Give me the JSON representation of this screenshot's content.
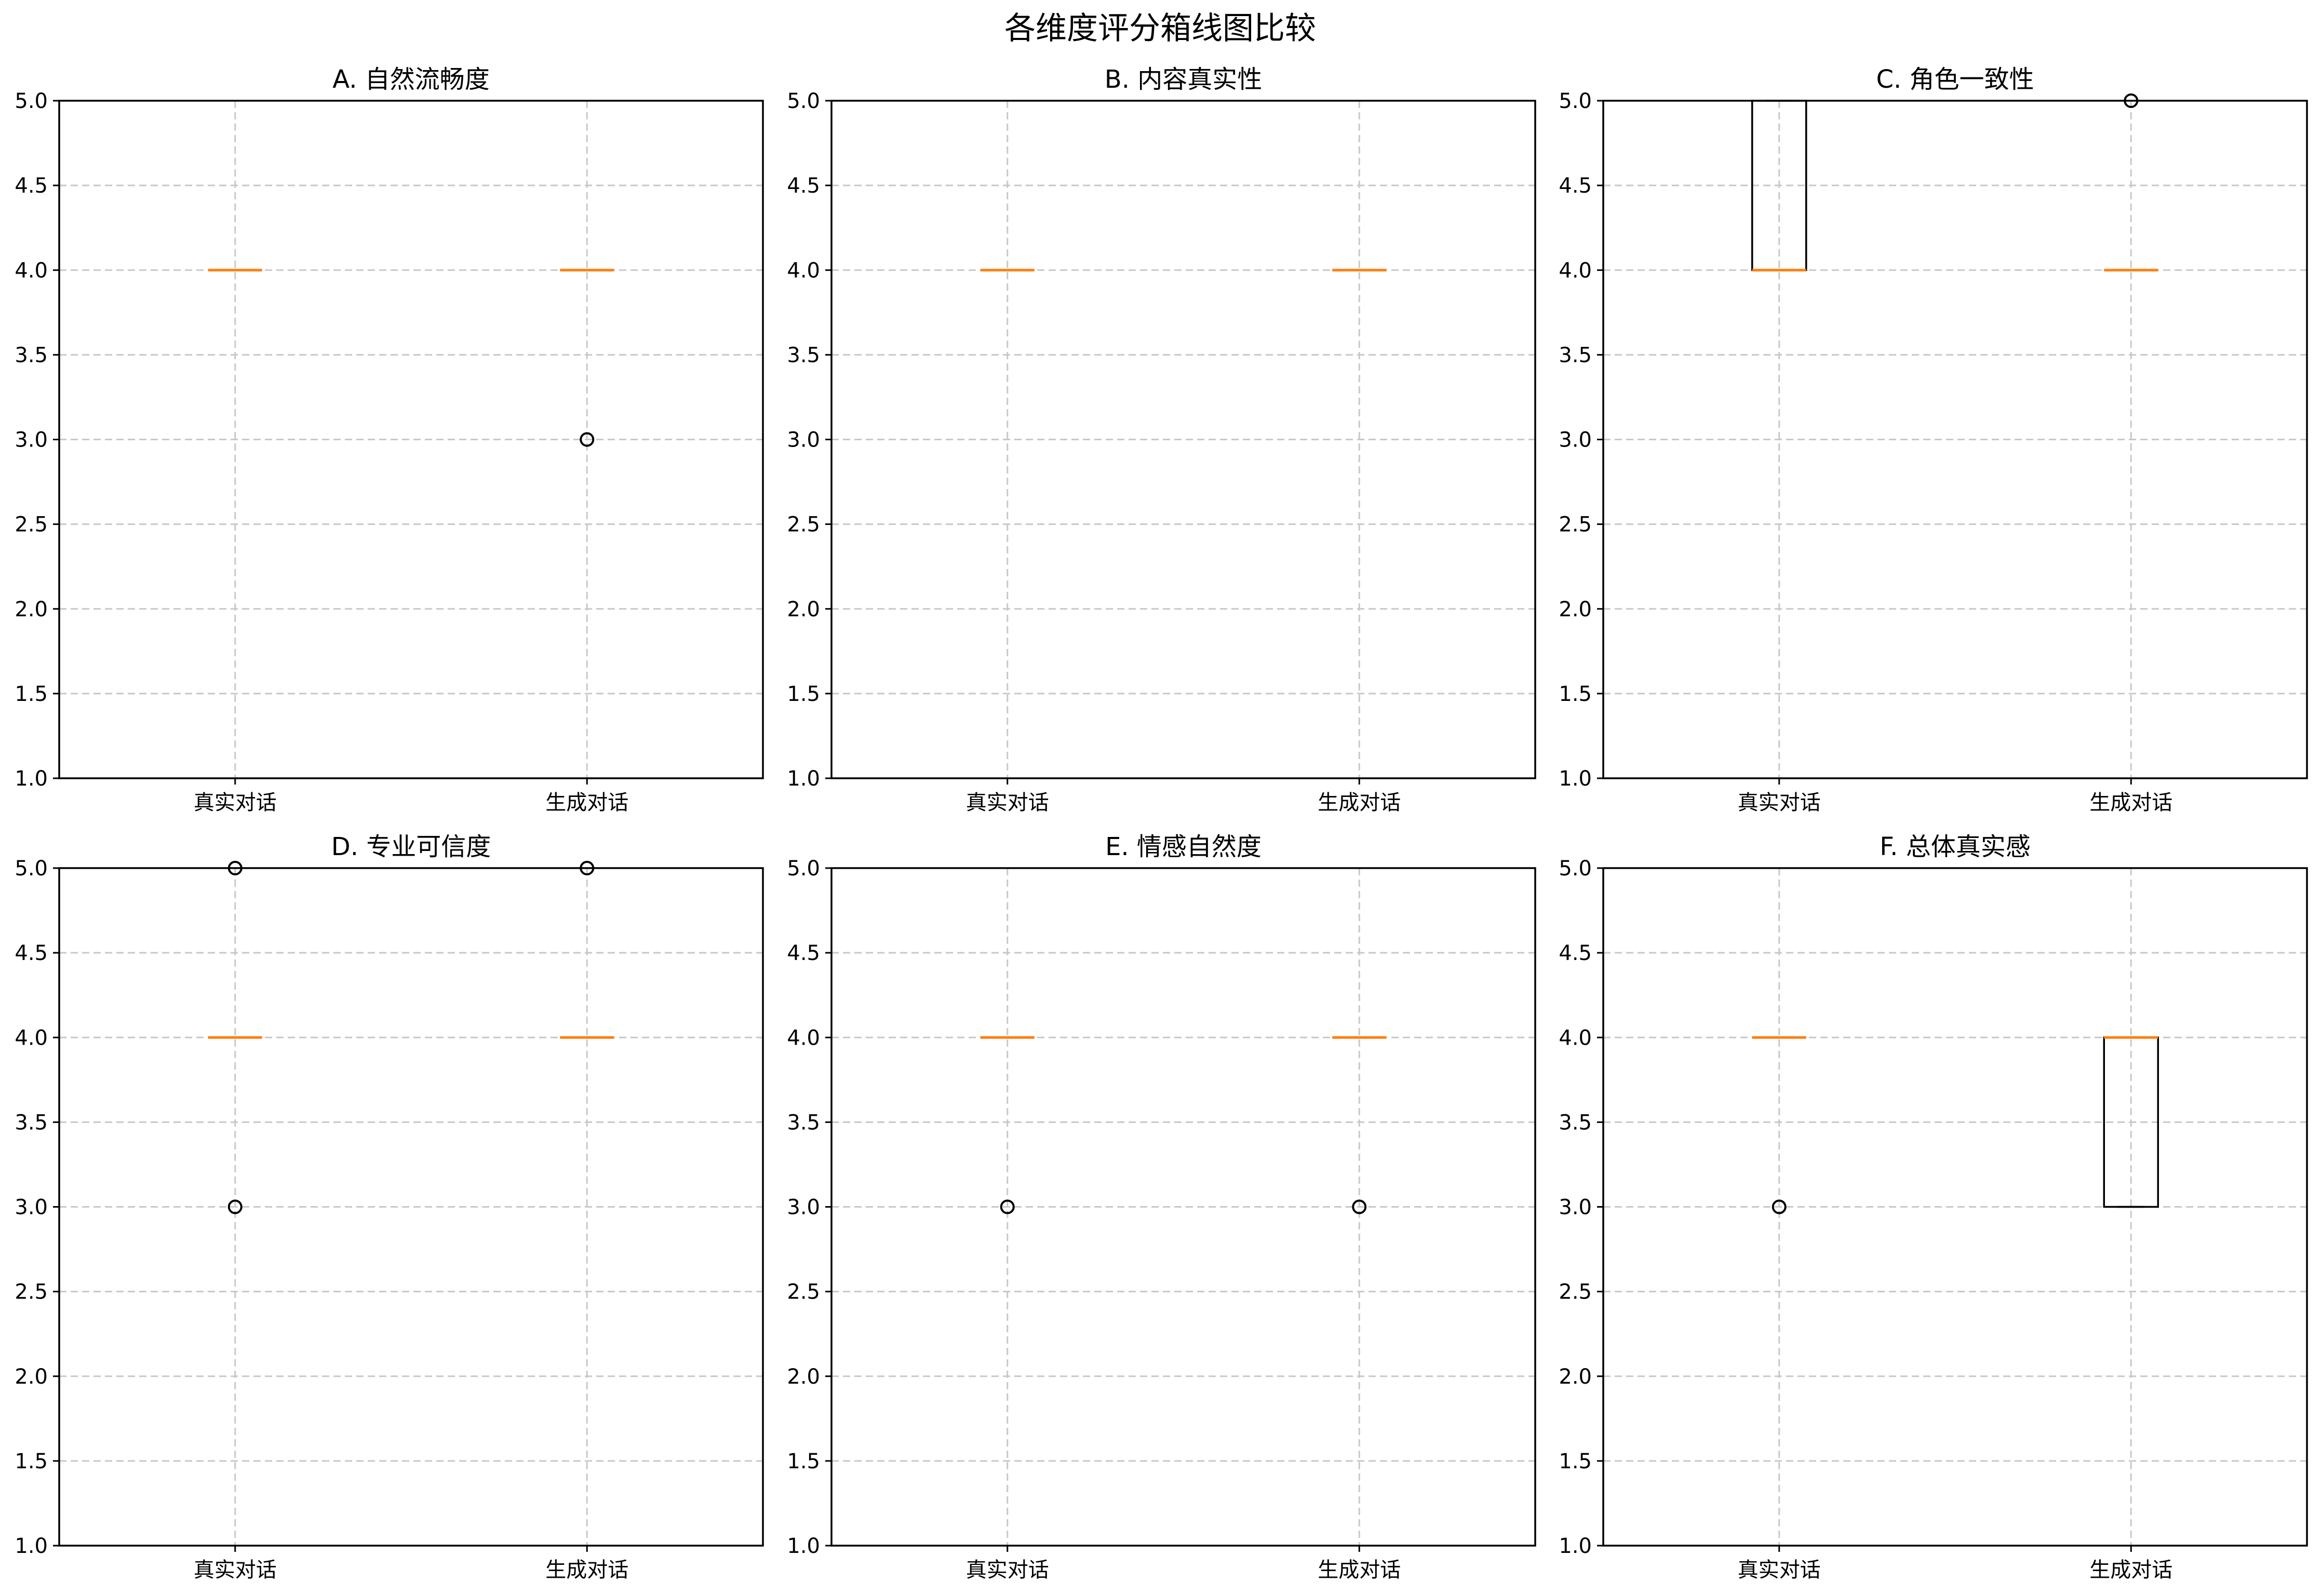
{
  "figure": {
    "title": "各维度评分箱线图比较"
  },
  "chart_data": [
    {
      "type": "box",
      "title": "A. 自然流畅度",
      "categories": [
        "真实对话",
        "生成对话"
      ],
      "y_ticks": [
        "1.0",
        "1.5",
        "2.0",
        "2.5",
        "3.0",
        "3.5",
        "4.0",
        "4.5",
        "5.0"
      ],
      "ylim": [
        1.0,
        5.0
      ],
      "grid": true,
      "boxes": [
        {
          "q1": 4.0,
          "median": 4.0,
          "q3": 4.0,
          "whisker_low": 4.0,
          "whisker_high": 4.0,
          "outliers": []
        },
        {
          "q1": 4.0,
          "median": 4.0,
          "q3": 4.0,
          "whisker_low": 4.0,
          "whisker_high": 4.0,
          "outliers": [
            3.0
          ]
        }
      ]
    },
    {
      "type": "box",
      "title": "B. 内容真实性",
      "categories": [
        "真实对话",
        "生成对话"
      ],
      "y_ticks": [
        "1.0",
        "1.5",
        "2.0",
        "2.5",
        "3.0",
        "3.5",
        "4.0",
        "4.5",
        "5.0"
      ],
      "ylim": [
        1.0,
        5.0
      ],
      "grid": true,
      "boxes": [
        {
          "q1": 4.0,
          "median": 4.0,
          "q3": 4.0,
          "whisker_low": 4.0,
          "whisker_high": 4.0,
          "outliers": []
        },
        {
          "q1": 4.0,
          "median": 4.0,
          "q3": 4.0,
          "whisker_low": 4.0,
          "whisker_high": 4.0,
          "outliers": []
        }
      ]
    },
    {
      "type": "box",
      "title": "C. 角色一致性",
      "categories": [
        "真实对话",
        "生成对话"
      ],
      "y_ticks": [
        "1.0",
        "1.5",
        "2.0",
        "2.5",
        "3.0",
        "3.5",
        "4.0",
        "4.5",
        "5.0"
      ],
      "ylim": [
        1.0,
        5.0
      ],
      "grid": true,
      "boxes": [
        {
          "q1": 4.0,
          "median": 4.0,
          "q3": 5.0,
          "whisker_low": 4.0,
          "whisker_high": 5.0,
          "outliers": []
        },
        {
          "q1": 4.0,
          "median": 4.0,
          "q3": 4.0,
          "whisker_low": 4.0,
          "whisker_high": 4.0,
          "outliers": [
            5.0
          ]
        }
      ]
    },
    {
      "type": "box",
      "title": "D. 专业可信度",
      "categories": [
        "真实对话",
        "生成对话"
      ],
      "y_ticks": [
        "1.0",
        "1.5",
        "2.0",
        "2.5",
        "3.0",
        "3.5",
        "4.0",
        "4.5",
        "5.0"
      ],
      "ylim": [
        1.0,
        5.0
      ],
      "grid": true,
      "boxes": [
        {
          "q1": 4.0,
          "median": 4.0,
          "q3": 4.0,
          "whisker_low": 4.0,
          "whisker_high": 4.0,
          "outliers": [
            5.0,
            3.0
          ]
        },
        {
          "q1": 4.0,
          "median": 4.0,
          "q3": 4.0,
          "whisker_low": 4.0,
          "whisker_high": 4.0,
          "outliers": [
            5.0
          ]
        }
      ]
    },
    {
      "type": "box",
      "title": "E. 情感自然度",
      "categories": [
        "真实对话",
        "生成对话"
      ],
      "y_ticks": [
        "1.0",
        "1.5",
        "2.0",
        "2.5",
        "3.0",
        "3.5",
        "4.0",
        "4.5",
        "5.0"
      ],
      "ylim": [
        1.0,
        5.0
      ],
      "grid": true,
      "boxes": [
        {
          "q1": 4.0,
          "median": 4.0,
          "q3": 4.0,
          "whisker_low": 4.0,
          "whisker_high": 4.0,
          "outliers": [
            3.0
          ]
        },
        {
          "q1": 4.0,
          "median": 4.0,
          "q3": 4.0,
          "whisker_low": 4.0,
          "whisker_high": 4.0,
          "outliers": [
            3.0
          ]
        }
      ]
    },
    {
      "type": "box",
      "title": "F. 总体真实感",
      "categories": [
        "真实对话",
        "生成对话"
      ],
      "y_ticks": [
        "1.0",
        "1.5",
        "2.0",
        "2.5",
        "3.0",
        "3.5",
        "4.0",
        "4.5",
        "5.0"
      ],
      "ylim": [
        1.0,
        5.0
      ],
      "grid": true,
      "boxes": [
        {
          "q1": 4.0,
          "median": 4.0,
          "q3": 4.0,
          "whisker_low": 4.0,
          "whisker_high": 4.0,
          "outliers": [
            3.0
          ]
        },
        {
          "q1": 3.0,
          "median": 4.0,
          "q3": 4.0,
          "whisker_low": 3.0,
          "whisker_high": 4.0,
          "outliers": []
        }
      ]
    }
  ],
  "colors": {
    "median": "#ff7f0e",
    "box": "#000000",
    "grid": "#c8c8c8",
    "axes": "#000000"
  }
}
